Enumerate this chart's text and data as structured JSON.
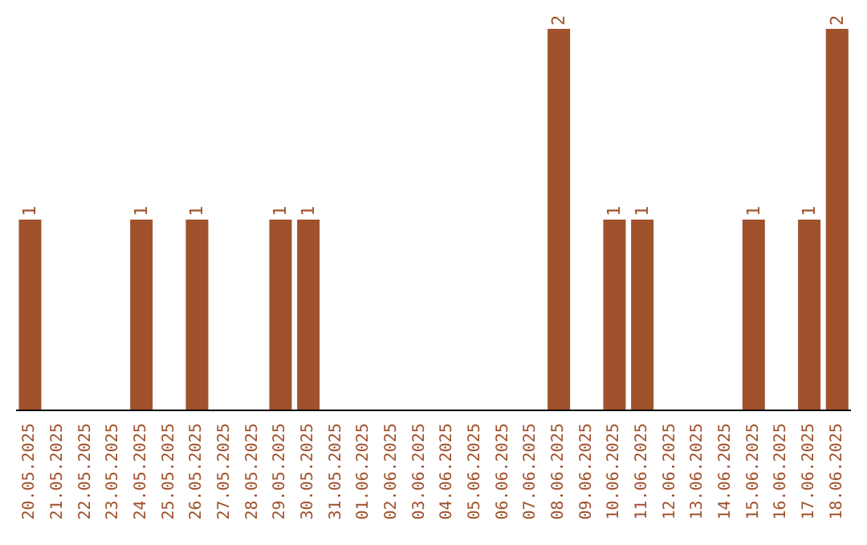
{
  "chart_data": {
    "type": "bar",
    "categories": [
      "20.05.2025",
      "21.05.2025",
      "22.05.2025",
      "23.05.2025",
      "24.05.2025",
      "25.05.2025",
      "26.05.2025",
      "27.05.2025",
      "28.05.2025",
      "29.05.2025",
      "30.05.2025",
      "31.05.2025",
      "01.06.2025",
      "02.06.2025",
      "03.06.2025",
      "04.06.2025",
      "05.06.2025",
      "06.06.2025",
      "07.06.2025",
      "08.06.2025",
      "09.06.2025",
      "10.06.2025",
      "11.06.2025",
      "12.06.2025",
      "13.06.2025",
      "14.06.2025",
      "15.06.2025",
      "16.06.2025",
      "17.06.2025",
      "18.06.2025"
    ],
    "values": [
      1,
      0,
      0,
      0,
      1,
      0,
      1,
      0,
      0,
      1,
      1,
      0,
      0,
      0,
      0,
      0,
      0,
      0,
      0,
      2,
      0,
      1,
      1,
      0,
      0,
      0,
      1,
      0,
      1,
      2
    ],
    "value_labels": [
      "1",
      null,
      null,
      null,
      "1",
      null,
      "1",
      null,
      null,
      "1",
      "1",
      null,
      null,
      null,
      null,
      null,
      null,
      null,
      null,
      "2",
      null,
      "1",
      "1",
      null,
      null,
      null,
      "1",
      null,
      "1",
      "2"
    ],
    "color": "#a0522d",
    "ylim": [
      0,
      2
    ],
    "tick_labels": "x",
    "grid": false,
    "legend": false
  }
}
